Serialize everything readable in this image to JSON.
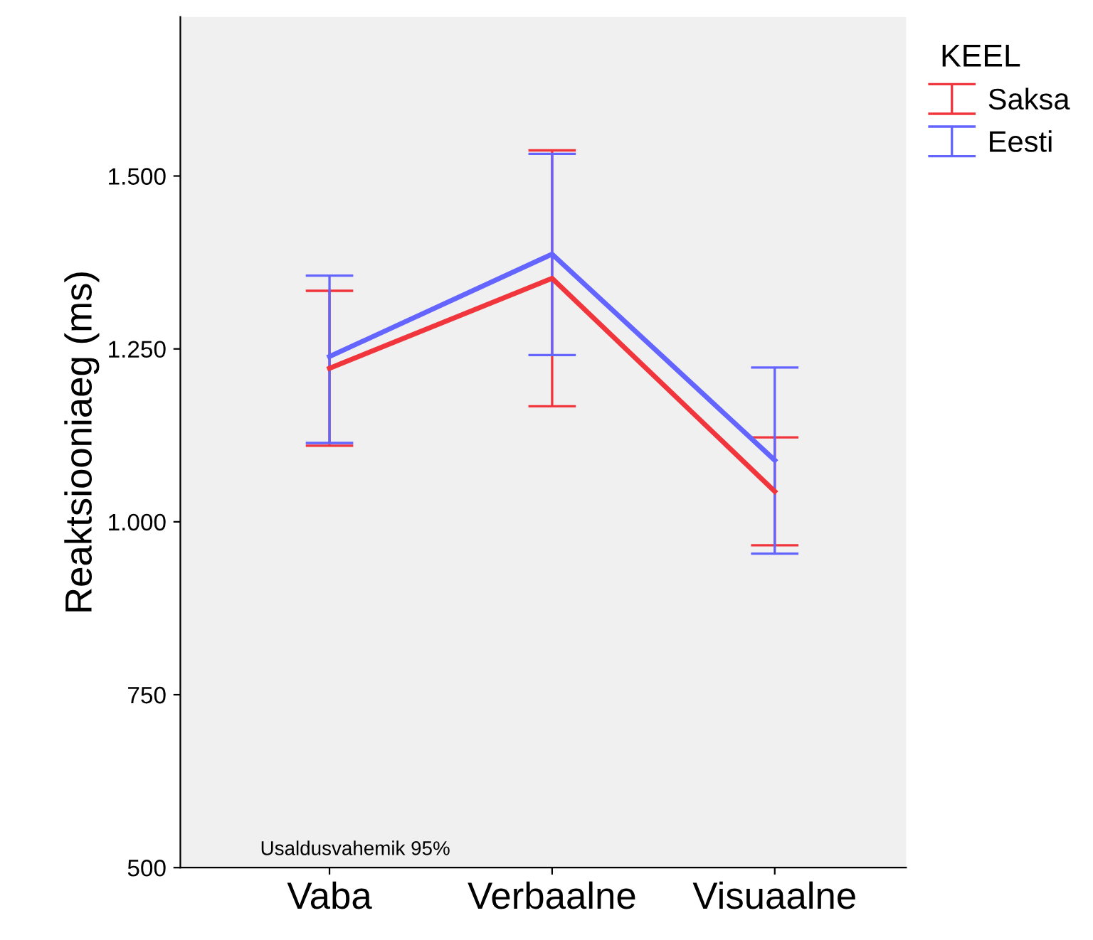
{
  "chart_data": {
    "type": "line",
    "ylabel": "Reaktsiooniaeg (ms)",
    "legend_title": "KEEL",
    "categories": [
      "Vaba",
      "Verbaalne",
      "Visuaalne"
    ],
    "series": [
      {
        "name": "Saksa",
        "color": "#f0363c",
        "values": [
          1222,
          1352,
          1044
        ],
        "errors": [
          [
            1110,
            1334
          ],
          [
            1167,
            1537
          ],
          [
            966,
            1122
          ]
        ]
      },
      {
        "name": "Eesti",
        "color": "#6464ff",
        "values": [
          1239,
          1387,
          1089
        ],
        "errors": [
          [
            1114,
            1356
          ],
          [
            1241,
            1532
          ],
          [
            954,
            1223
          ]
        ]
      }
    ],
    "ylim": [
      500,
      1730
    ],
    "yticks": [
      {
        "value": 500,
        "label": "500"
      },
      {
        "value": 750,
        "label": "750"
      },
      {
        "value": 1000,
        "label": "1.000"
      },
      {
        "value": 1250,
        "label": "1.250"
      },
      {
        "value": 1500,
        "label": "1.500"
      }
    ],
    "annotations": [
      "Usaldusvahemik 95%"
    ],
    "legend": "right",
    "grid": false,
    "marker": "none",
    "line_style": "solid"
  }
}
